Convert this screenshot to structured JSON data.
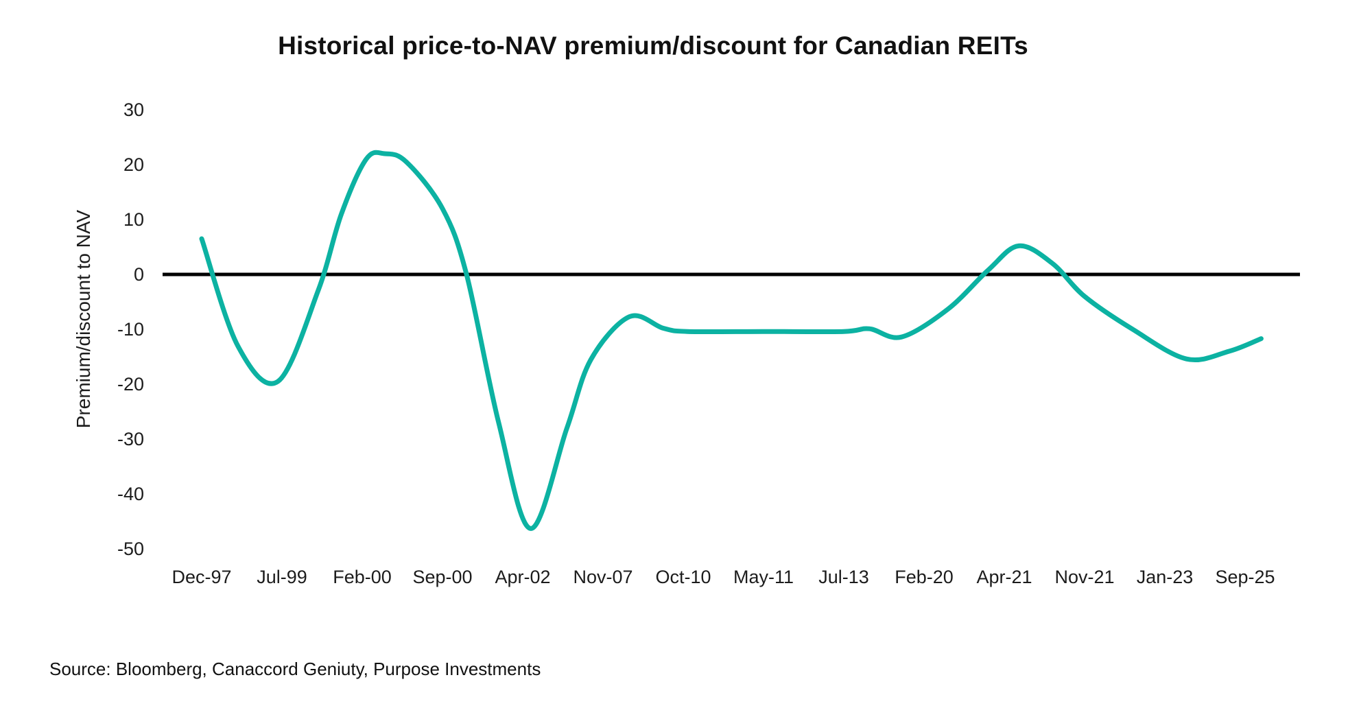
{
  "title": "Historical price-to-NAV premium/discount for Canadian REITs",
  "source": "Source: Bloomberg, Canaccord Geniuty, Purpose Investments",
  "chart_data": {
    "type": "line",
    "title": "Historical price-to-NAV premium/discount for Canadian REITs",
    "xlabel": "",
    "ylabel": "Premium/discount to NAV",
    "ylim": [
      -50,
      30
    ],
    "y_ticks": [
      30,
      20,
      10,
      0,
      -10,
      -20,
      -30,
      -40,
      -50
    ],
    "x_tick_labels": [
      "Dec-97",
      "Jul-99",
      "Feb-00",
      "Sep-00",
      "Apr-02",
      "Nov-07",
      "Oct-10",
      "May-11",
      "Jul-13",
      "Feb-20",
      "Apr-21",
      "Nov-21",
      "Jan-23",
      "Sep-25"
    ],
    "x_unit": "category-index (0 = Dec-97, 13 = Sep-25)",
    "grid": false,
    "legend_position": "none",
    "zero_line": true,
    "line_color": "#0cb2a2",
    "zero_line_color": "#000000",
    "series": [
      {
        "name": "Price-to-NAV premium/discount (%)",
        "color": "#0cb2a2",
        "points": [
          [
            0.0,
            6.5
          ],
          [
            0.45,
            -13.0
          ],
          [
            0.95,
            -19.5
          ],
          [
            1.45,
            -3.0
          ],
          [
            1.74,
            11.0
          ],
          [
            2.05,
            21.0
          ],
          [
            2.28,
            22.0
          ],
          [
            2.55,
            20.5
          ],
          [
            3.0,
            12.0
          ],
          [
            3.3,
            0.0
          ],
          [
            3.7,
            -27.0
          ],
          [
            4.1,
            -46.3
          ],
          [
            4.55,
            -28.0
          ],
          [
            4.85,
            -15.5
          ],
          [
            5.33,
            -7.7
          ],
          [
            5.75,
            -9.8
          ],
          [
            6.05,
            -10.4
          ],
          [
            7.0,
            -10.4
          ],
          [
            8.0,
            -10.4
          ],
          [
            8.32,
            -9.9
          ],
          [
            8.72,
            -11.4
          ],
          [
            9.3,
            -6.3
          ],
          [
            9.8,
            0.8
          ],
          [
            10.18,
            5.2
          ],
          [
            10.6,
            2.0
          ],
          [
            11.0,
            -4.0
          ],
          [
            11.6,
            -10.0
          ],
          [
            12.27,
            -15.4
          ],
          [
            12.8,
            -14.0
          ],
          [
            13.2,
            -11.7
          ]
        ]
      }
    ]
  }
}
